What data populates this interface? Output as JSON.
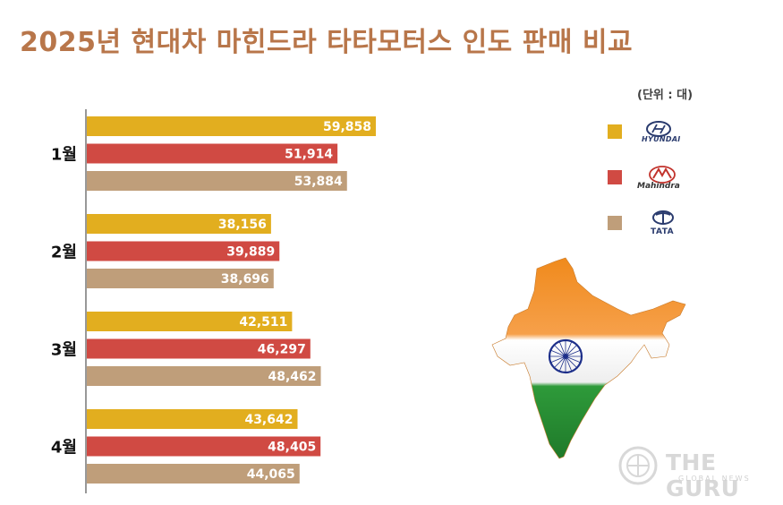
{
  "title": "2025년 현대차 마힌드라 타타모터스 인도 판매 비교",
  "unit_label": "(단위 : 대)",
  "colors": {
    "hyundai": "#e2ae1f",
    "mahindra": "#d04a43",
    "tata": "#bf9e7a"
  },
  "legend": {
    "hyundai": "HYUNDAI",
    "mahindra": "Mahindra",
    "tata": "TATA"
  },
  "watermark": {
    "name": "THE GURU",
    "sub": "GLOBAL NEWS"
  },
  "chart_data": {
    "type": "bar",
    "orientation": "horizontal",
    "categories": [
      "1월",
      "2월",
      "3월",
      "4월"
    ],
    "series": [
      {
        "name": "HYUNDAI",
        "values": [
          59858,
          38156,
          42511,
          43642
        ],
        "labels": [
          "59,858",
          "38,156",
          "42,511",
          "43,642"
        ]
      },
      {
        "name": "Mahindra",
        "values": [
          51914,
          39889,
          46297,
          48405
        ],
        "labels": [
          "51,914",
          "39,889",
          "46,297",
          "48,405"
        ]
      },
      {
        "name": "TATA",
        "values": [
          53884,
          38696,
          48462,
          44065
        ],
        "labels": [
          "53,884",
          "38,696",
          "48,462",
          "44,065"
        ]
      }
    ],
    "legend_position": "right",
    "grid": false
  }
}
